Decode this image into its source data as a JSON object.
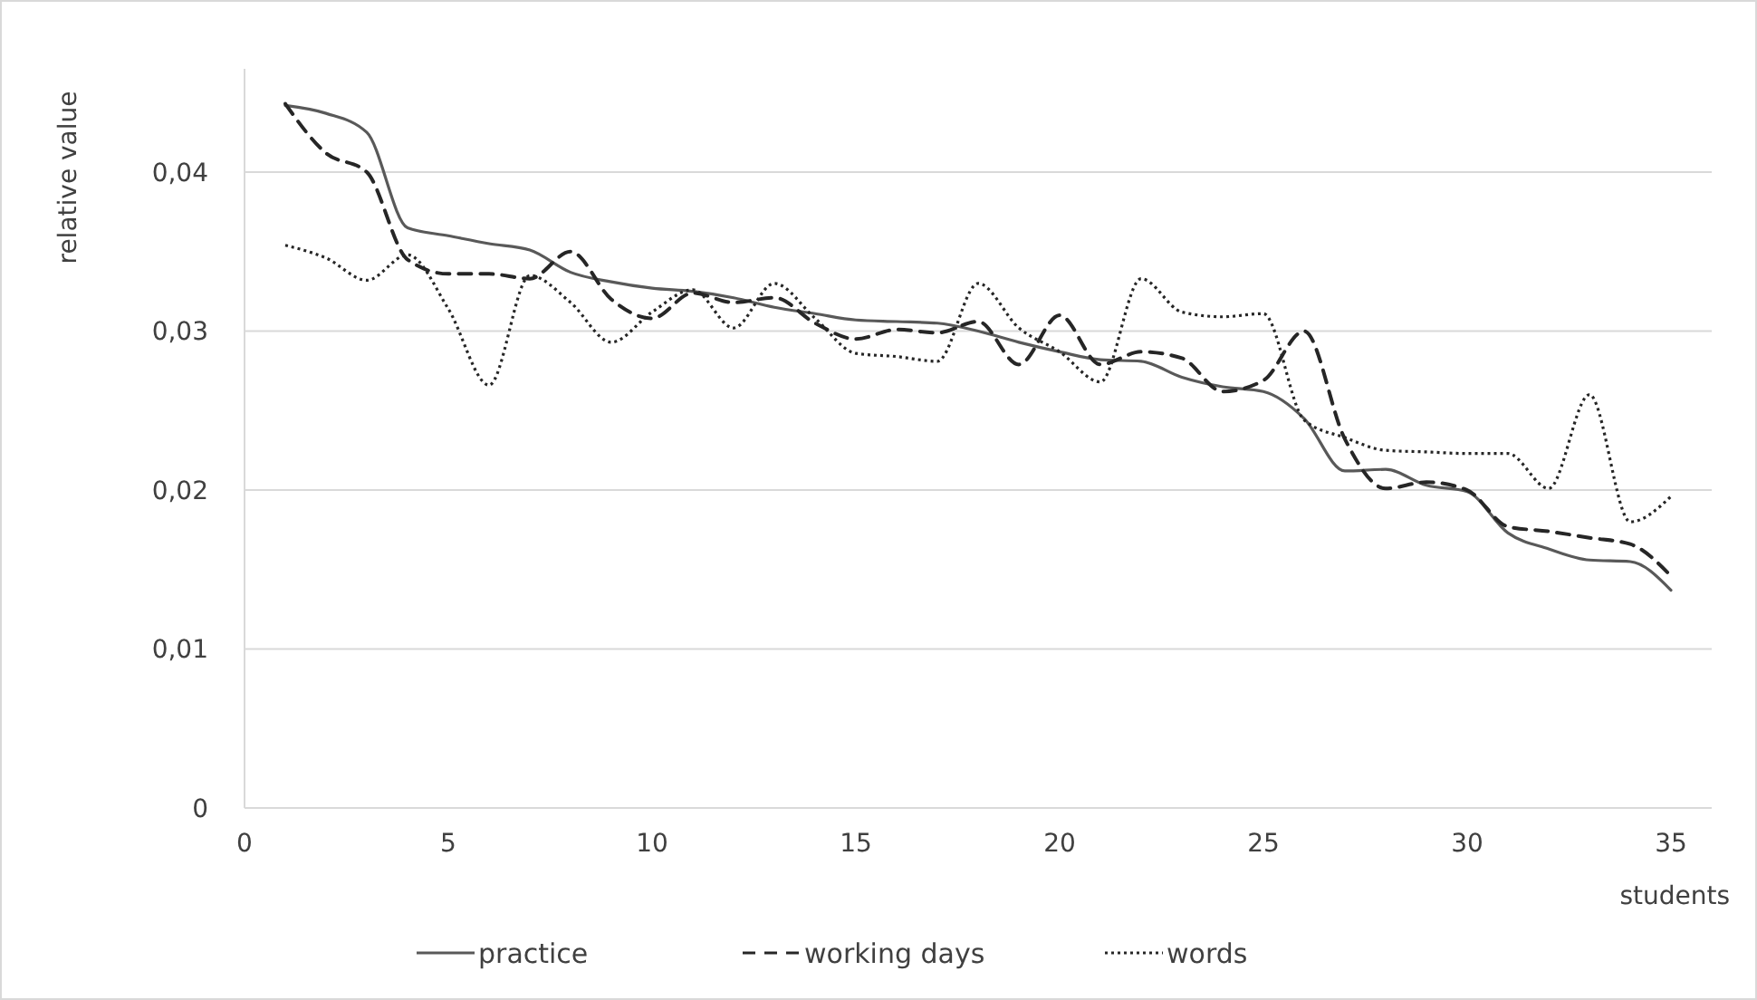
{
  "chart_data": {
    "type": "line",
    "xlabel": "students",
    "ylabel": "relative value",
    "x": [
      1,
      2,
      3,
      4,
      5,
      6,
      7,
      8,
      9,
      10,
      11,
      12,
      13,
      14,
      15,
      16,
      17,
      18,
      19,
      20,
      21,
      22,
      23,
      24,
      25,
      26,
      27,
      28,
      29,
      30,
      31,
      32,
      33,
      34,
      35
    ],
    "xlim": [
      0,
      36
    ],
    "xticks": [
      0,
      5,
      10,
      15,
      20,
      25,
      30,
      35
    ],
    "ylim": [
      0,
      0.0465
    ],
    "yticks": [
      0,
      {
        "value": 0.01,
        "label": "0,01"
      },
      {
        "value": 0.02,
        "label": "0,02"
      },
      {
        "value": 0.03,
        "label": "0,03"
      },
      {
        "value": 0.04,
        "label": "0,04"
      }
    ],
    "grid": "y",
    "legend": "bottom",
    "series": [
      {
        "name": "practice",
        "color": "#595959",
        "line_style": "solid",
        "values": [
          0.0442,
          0.0437,
          0.0425,
          0.0365,
          0.036,
          0.0355,
          0.0351,
          0.0337,
          0.0331,
          0.0327,
          0.0325,
          0.0321,
          0.0315,
          0.0311,
          0.0307,
          0.0306,
          0.0305,
          0.03,
          0.0293,
          0.0287,
          0.0282,
          0.0281,
          0.0271,
          0.0265,
          0.0262,
          0.0245,
          0.0212,
          0.0213,
          0.0203,
          0.0199,
          0.0173,
          0.0163,
          0.0156,
          0.0155,
          0.0137
        ]
      },
      {
        "name": "working days",
        "color": "#262626",
        "line_style": "dashed",
        "values": [
          0.0443,
          0.0412,
          0.04,
          0.0345,
          0.0336,
          0.0336,
          0.0333,
          0.035,
          0.032,
          0.0308,
          0.0324,
          0.0318,
          0.0321,
          0.0305,
          0.0295,
          0.0301,
          0.0299,
          0.0306,
          0.0279,
          0.031,
          0.0279,
          0.0287,
          0.0283,
          0.0262,
          0.0269,
          0.03,
          0.0232,
          0.0201,
          0.0205,
          0.02,
          0.0177,
          0.0174,
          0.017,
          0.0166,
          0.0146
        ]
      },
      {
        "name": "words",
        "color": "#262626",
        "line_style": "dotted",
        "values": [
          0.0354,
          0.0346,
          0.0332,
          0.0348,
          0.0314,
          0.0266,
          0.0335,
          0.0318,
          0.0293,
          0.0312,
          0.0326,
          0.0302,
          0.033,
          0.0308,
          0.0286,
          0.0284,
          0.0281,
          0.033,
          0.0302,
          0.0287,
          0.0268,
          0.0333,
          0.0312,
          0.0309,
          0.0311,
          0.0244,
          0.0233,
          0.0225,
          0.0224,
          0.0223,
          0.0223,
          0.0201,
          0.026,
          0.018,
          0.0196
        ]
      }
    ]
  }
}
